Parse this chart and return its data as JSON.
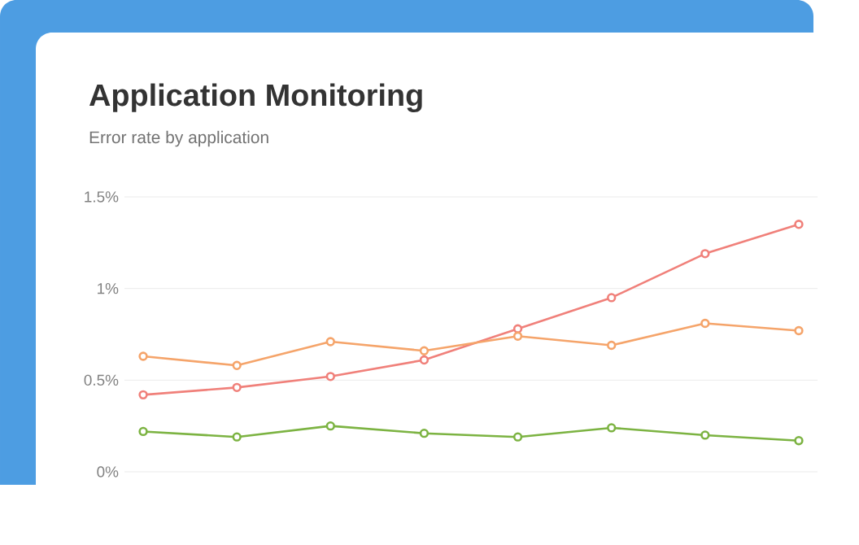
{
  "chart_data": {
    "type": "line",
    "title": "Application Monitoring",
    "subtitle": "Error rate by application",
    "categories": [
      null,
      null,
      null,
      null,
      null,
      null,
      null,
      null
    ],
    "series": [
      {
        "color": "#f0807a",
        "values": [
          0.42,
          0.46,
          0.52,
          0.61,
          0.78,
          0.95,
          1.19,
          1.35
        ]
      },
      {
        "color": "#f5a46a",
        "values": [
          0.63,
          0.58,
          0.71,
          0.66,
          0.74,
          0.69,
          0.81,
          0.77
        ]
      },
      {
        "color": "#7cb342",
        "values": [
          0.22,
          0.19,
          0.25,
          0.21,
          0.19,
          0.24,
          0.2,
          0.17
        ]
      }
    ],
    "ylim": [
      0,
      1.5
    ],
    "yticks": [
      {
        "value": 0,
        "label": "0%"
      },
      {
        "value": 0.5,
        "label": "0.5%"
      },
      {
        "value": 1,
        "label": "1%"
      },
      {
        "value": 1.5,
        "label": "1.5%"
      }
    ],
    "grid": "y",
    "marker": "circle",
    "line_style": "solid",
    "tick_labels": "y"
  }
}
